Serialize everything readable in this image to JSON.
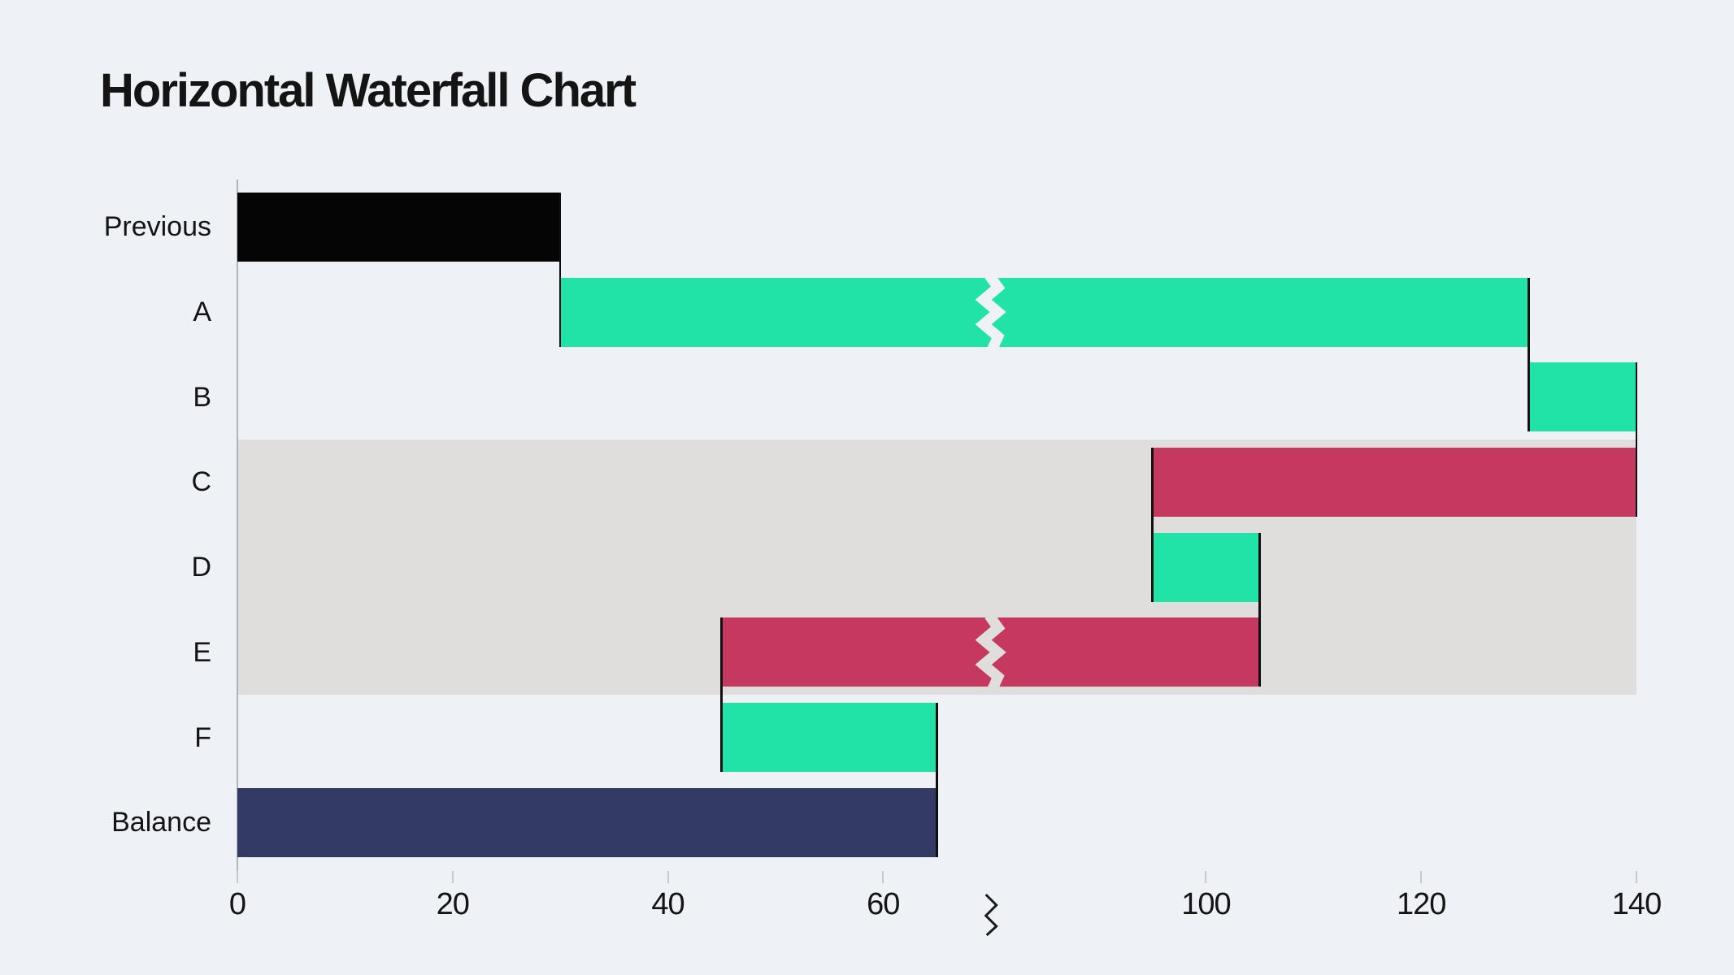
{
  "page": {
    "background": "#EEF2F6"
  },
  "chart_data": {
    "type": "bar",
    "variant": "horizontal-waterfall",
    "title": "Horizontal Waterfall Chart",
    "orientation": "horizontal",
    "grid": false,
    "legend_position": "none",
    "categories": [
      "Previous",
      "A",
      "B",
      "C",
      "D",
      "E",
      "F",
      "Balance"
    ],
    "series": [
      {
        "name": "Previous",
        "from": 0,
        "to": 30,
        "delta": 30,
        "role": "total-start",
        "bar_broken_by_axis_break": false
      },
      {
        "name": "A",
        "from": 30,
        "to": 130,
        "delta": 100,
        "role": "increase",
        "bar_broken_by_axis_break": true
      },
      {
        "name": "B",
        "from": 130,
        "to": 140,
        "delta": 10,
        "role": "increase",
        "bar_broken_by_axis_break": false
      },
      {
        "name": "C",
        "from": 140,
        "to": 95,
        "delta": -45,
        "role": "decrease",
        "bar_broken_by_axis_break": false
      },
      {
        "name": "D",
        "from": 95,
        "to": 105,
        "delta": 10,
        "role": "increase",
        "bar_broken_by_axis_break": false
      },
      {
        "name": "E",
        "from": 105,
        "to": 45,
        "delta": -60,
        "role": "decrease",
        "bar_broken_by_axis_break": true
      },
      {
        "name": "F",
        "from": 45,
        "to": 65,
        "delta": 20,
        "role": "increase",
        "bar_broken_by_axis_break": false
      },
      {
        "name": "Balance",
        "from": 0,
        "to": 65,
        "delta": 65,
        "role": "total-end",
        "bar_broken_by_axis_break": false
      }
    ],
    "xaxis": {
      "min": 0,
      "max": 140,
      "ticks": [
        0,
        20,
        40,
        60,
        100,
        120,
        140
      ],
      "tick_interval": 20,
      "break": {
        "from": 70,
        "to": 80
      }
    },
    "highlight_band": {
      "categories": [
        "C",
        "D",
        "E"
      ],
      "color": "#E0DEDD"
    },
    "colors": {
      "background": "#EEF2F6",
      "increase": "#21E2A7",
      "decrease": "#C5395F",
      "total_start": "#050505",
      "total_end": "#333A64",
      "band": "#E0DEDD",
      "axis_line": "#AEB4BA",
      "tick_mark": "#C5CACE",
      "connector": "#111111",
      "text": "#141414"
    }
  }
}
